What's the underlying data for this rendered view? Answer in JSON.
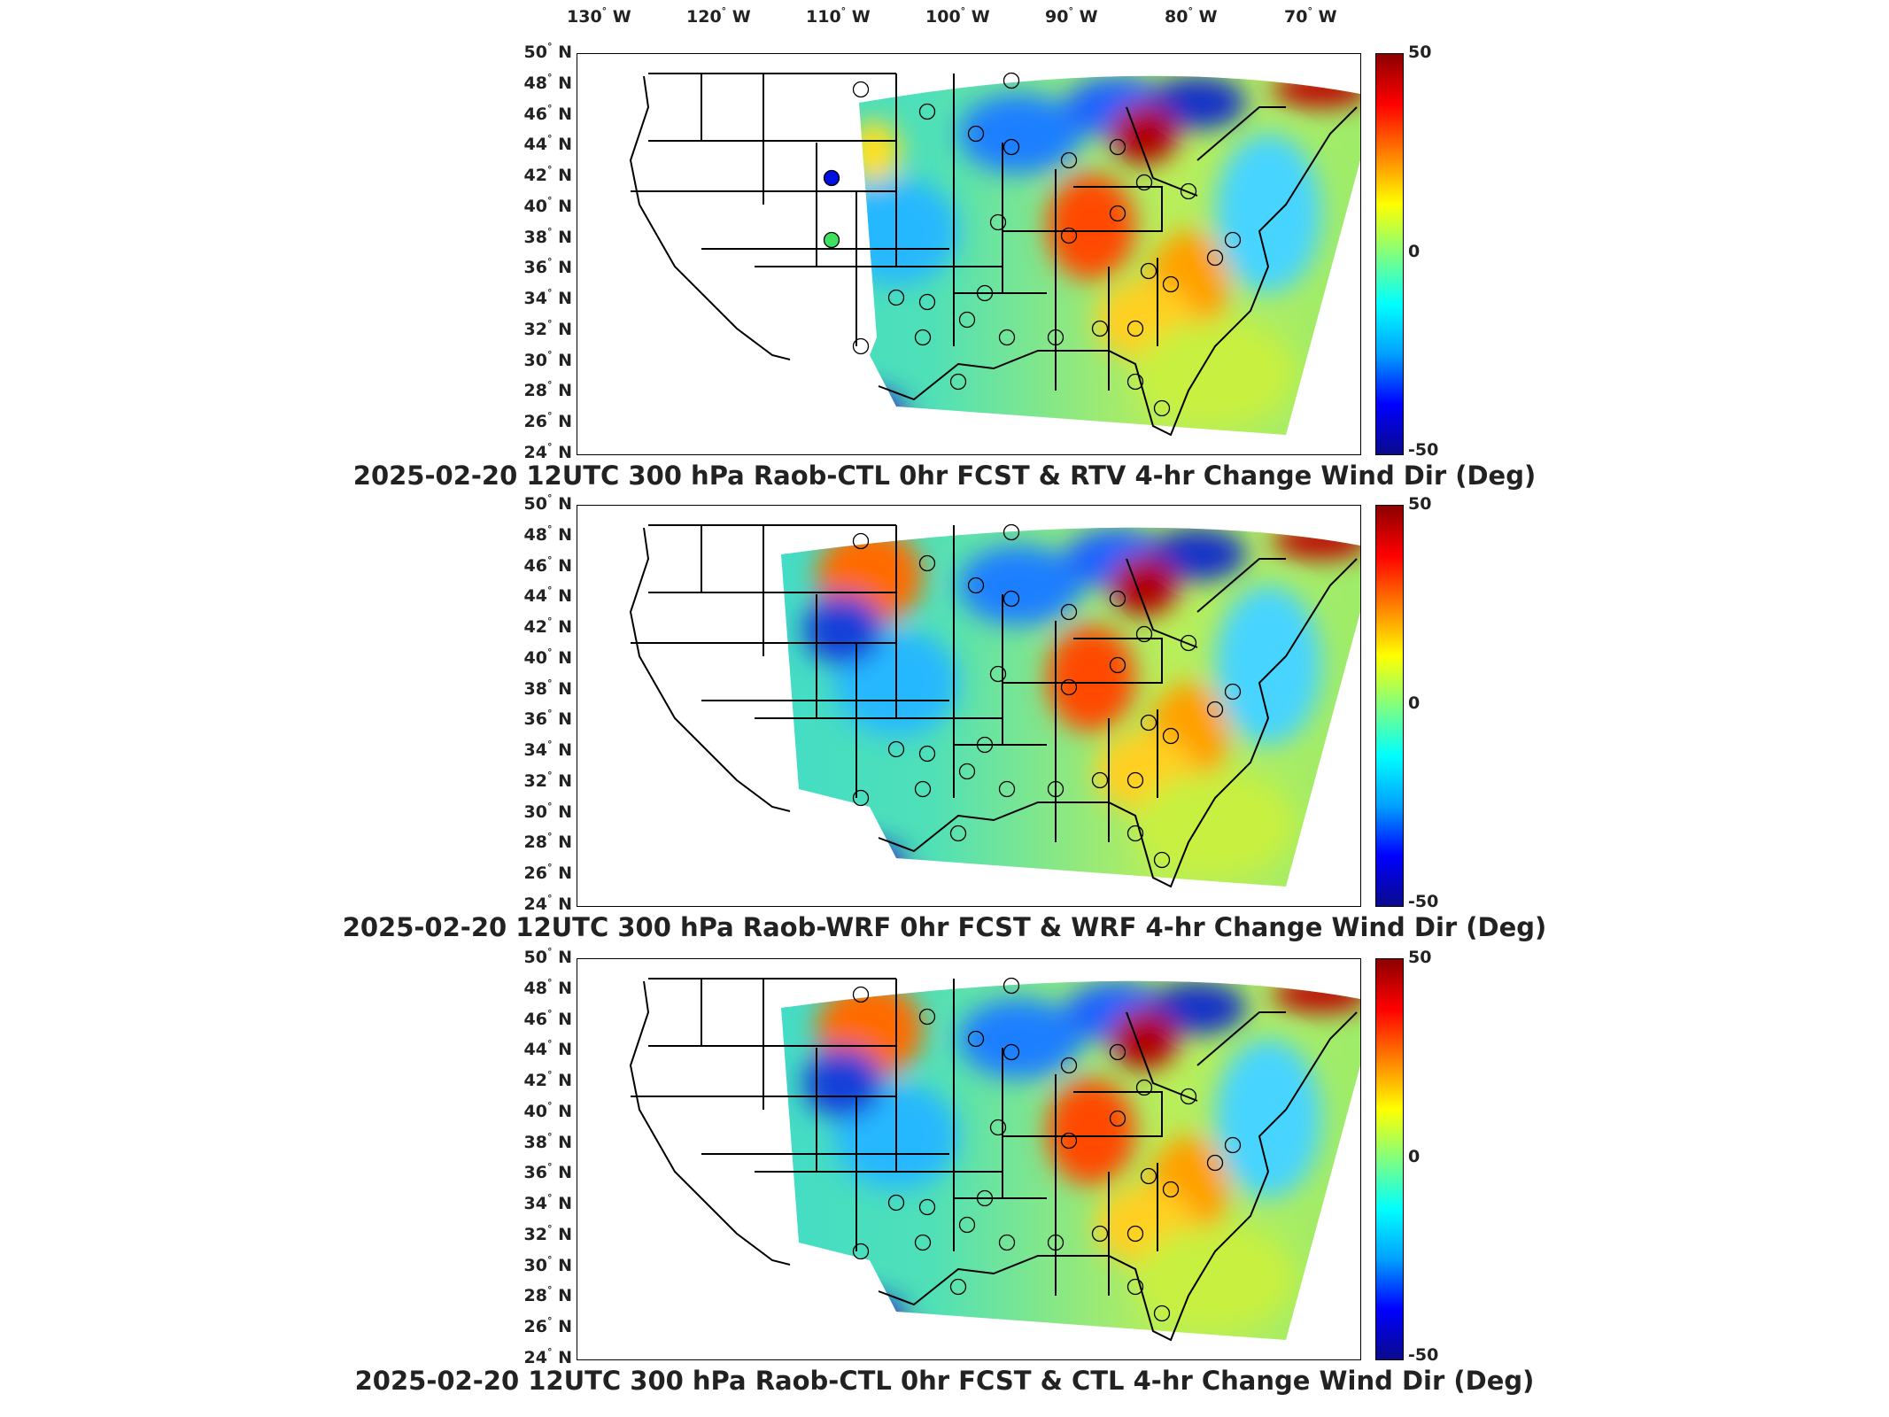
{
  "lon_ticks": [
    "130",
    "120",
    "110",
    "100",
    "90",
    "80",
    "70"
  ],
  "lon_suffix": "W",
  "lat_ticks": [
    "50",
    "48",
    "46",
    "44",
    "42",
    "40",
    "38",
    "36",
    "34",
    "32",
    "30",
    "28",
    "26",
    "24"
  ],
  "lat_suffix": "N",
  "degree": "°",
  "colorbar": {
    "max": "50",
    "mid": "0",
    "min": "-50",
    "colors": [
      "#0a0a8c",
      "#0000ff",
      "#00a0ff",
      "#00ffff",
      "#80ff80",
      "#ffff00",
      "#ff8000",
      "#ff0000",
      "#8c0000"
    ]
  },
  "panels": [
    {
      "title": "2025-02-20 12UTC 300 hPa Raob-CTL 0hr FCST & RTV 4-hr Change Wind Dir (Deg)"
    },
    {
      "title": "2025-02-20 12UTC 300 hPa Raob-WRF 0hr FCST & WRF 4-hr Change Wind Dir (Deg)"
    },
    {
      "title": "2025-02-20 12UTC 300 hPa Raob-CTL 0hr FCST & CTL 4-hr Change Wind Dir (Deg)"
    }
  ]
}
